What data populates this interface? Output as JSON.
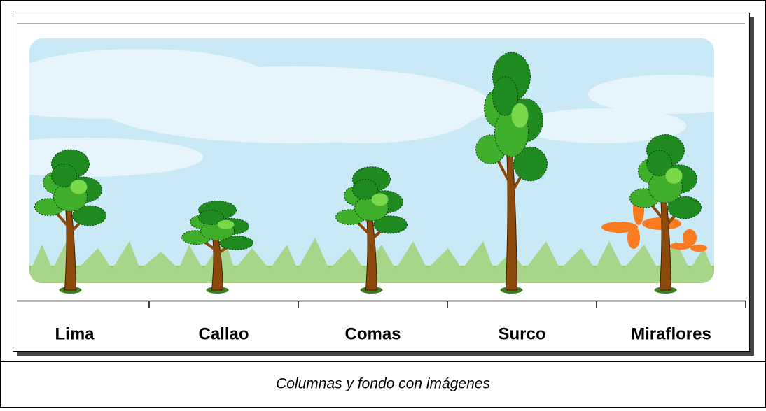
{
  "chart_data": {
    "type": "pictograph",
    "categories": [
      "Lima",
      "Callao",
      "Comas",
      "Surco",
      "Miraflores"
    ],
    "values": [
      205,
      130,
      180,
      347,
      227
    ],
    "caption": "Columnas y fondo con imágenes"
  }
}
